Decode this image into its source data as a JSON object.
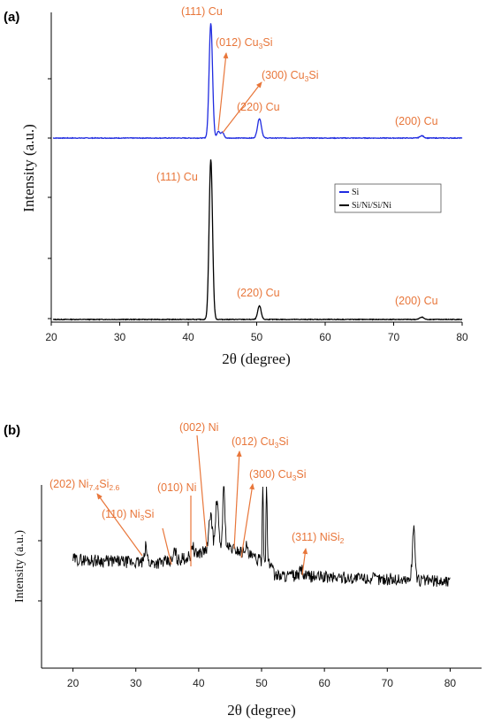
{
  "colors": {
    "annotation": "#E8763A",
    "series_si": "#1F2BE0",
    "series_sini": "#000000",
    "axis": "#000000"
  },
  "chart_data": [
    {
      "panel_label": "(a)",
      "type": "line",
      "xlabel": "2θ (degree)",
      "ylabel": "Intensity (a.u.)",
      "xlim": [
        20,
        80
      ],
      "xticks": [
        20,
        30,
        40,
        50,
        60,
        70,
        80
      ],
      "legend": {
        "placement": "middle-right",
        "entries": [
          "Si",
          "Si/Ni/Si/Ni"
        ]
      },
      "series": [
        {
          "name": "Si",
          "color": "#1F2BE0",
          "baseline": 0,
          "peaks": [
            {
              "x": 43.3,
              "height": 100,
              "width": 0.35
            },
            {
              "x": 44.4,
              "height": 6,
              "width": 0.3
            },
            {
              "x": 45.0,
              "height": 5,
              "width": 0.3
            },
            {
              "x": 50.4,
              "height": 17,
              "width": 0.4
            },
            {
              "x": 74.1,
              "height": 2,
              "width": 0.4
            }
          ]
        },
        {
          "name": "Si/Ni/Si/Ni",
          "color": "#000000",
          "baseline": 0,
          "peaks": [
            {
              "x": 43.3,
              "height": 100,
              "width": 0.35
            },
            {
              "x": 50.4,
              "height": 8.5,
              "width": 0.35
            },
            {
              "x": 74.1,
              "height": 1.5,
              "width": 0.4
            }
          ]
        }
      ],
      "annotations": [
        {
          "text": "(111) Cu",
          "name": "111-cu"
        },
        {
          "text": "(012) Cu",
          "sub": "3",
          "tail": "Si",
          "name": "012-cu3si"
        },
        {
          "text": "(300) Cu",
          "sub": "3",
          "tail": "Si",
          "name": "300-cu3si"
        },
        {
          "text": "(220) Cu",
          "name": "220-cu"
        },
        {
          "text": "(200) Cu",
          "name": "200-cu"
        },
        {
          "text": "(111) Cu",
          "name": "111-cu-lower"
        },
        {
          "text": "(220) Cu",
          "name": "220-cu-lower"
        },
        {
          "text": "(200) Cu",
          "name": "200-cu-lower"
        }
      ]
    },
    {
      "panel_label": "(b)",
      "type": "line",
      "xlabel": "2θ (degree)",
      "ylabel": "Intensity (a.u.)",
      "xlim": [
        15,
        85
      ],
      "xticks": [
        20,
        30,
        40,
        50,
        60,
        70,
        80
      ],
      "series": [
        {
          "name": "",
          "color": "#000000",
          "x_range": [
            20,
            80
          ],
          "peaks": [
            {
              "x": 31.6,
              "height": 18
            },
            {
              "x": 36.2,
              "height": 12
            },
            {
              "x": 39.0,
              "height": 14
            },
            {
              "x": 41.9,
              "height": 40
            },
            {
              "x": 42.9,
              "height": 55
            },
            {
              "x": 44.0,
              "height": 70
            },
            {
              "x": 47.5,
              "height": 10
            },
            {
              "x": 50.2,
              "height": 100
            },
            {
              "x": 50.8,
              "height": 100
            },
            {
              "x": 56.3,
              "height": 9
            },
            {
              "x": 74.2,
              "height": 60
            }
          ]
        }
      ],
      "annotations": [
        {
          "text": "(202) Ni",
          "sub": "7.4",
          "mid": "Si",
          "sub2": "2.6",
          "name": "202-ni7si2"
        },
        {
          "text": "(110) Ni",
          "sub": "3",
          "tail": "Si",
          "name": "110-ni3si"
        },
        {
          "text": "(010) Ni",
          "name": "010-ni"
        },
        {
          "text": "(002) Ni",
          "name": "002-ni"
        },
        {
          "text": "(012) Cu",
          "sub": "3",
          "tail": "Si",
          "name": "012-cu3si-b"
        },
        {
          "text": "(300) Cu",
          "sub": "3",
          "tail": "Si",
          "name": "300-cu3si-b"
        },
        {
          "text": "(311) NiSi",
          "sub": "2",
          "name": "311-nisi2"
        }
      ]
    }
  ]
}
